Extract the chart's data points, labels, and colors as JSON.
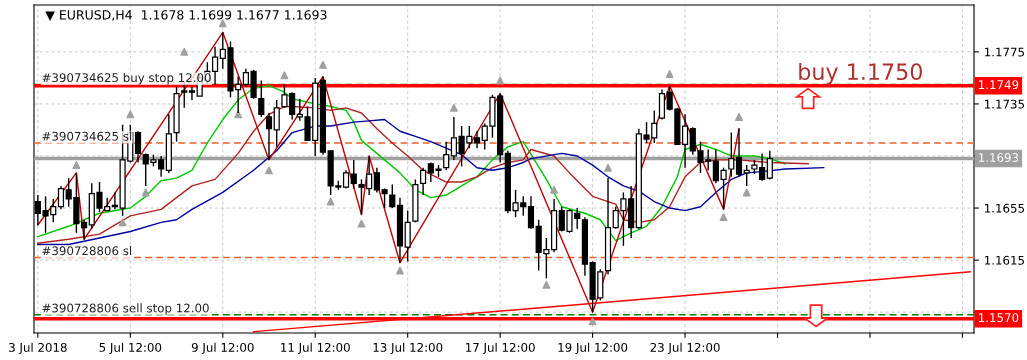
{
  "chart_data": {
    "type": "candlestick",
    "title": "▼ EURUSD,H4  1.1678 1.1699 1.1677 1.1693",
    "categories": [
      "3 Jul 2018",
      null,
      null,
      null,
      null,
      null,
      null,
      null,
      null,
      null,
      null,
      null,
      "5 Jul 12:00",
      null,
      null,
      null,
      null,
      null,
      null,
      null,
      null,
      null,
      null,
      null,
      "9 Jul 12:00",
      null,
      null,
      null,
      null,
      null,
      null,
      null,
      null,
      null,
      null,
      null,
      "11 Jul 12:00",
      null,
      null,
      null,
      null,
      null,
      null,
      null,
      null,
      null,
      null,
      null,
      "13 Jul 12:00",
      null,
      null,
      null,
      null,
      null,
      null,
      null,
      null,
      null,
      null,
      null,
      "17 Jul 12:00",
      null,
      null,
      null,
      null,
      null,
      null,
      null,
      null,
      null,
      null,
      null,
      "19 Jul 12:00",
      null,
      null,
      null,
      null,
      null,
      null,
      null,
      null,
      null,
      null,
      null,
      "23 Jul 12:00",
      null,
      null,
      null,
      null,
      null,
      null,
      null,
      null,
      null,
      null,
      null,
      null,
      null,
      null,
      null,
      null,
      null,
      null,
      null,
      null,
      null,
      null,
      null,
      null,
      null,
      null,
      null,
      null,
      null,
      null,
      null,
      null,
      null,
      null,
      null,
      null,
      null
    ],
    "ohlc": [
      [
        1.166,
        1.1665,
        1.1642,
        1.1651
      ],
      [
        1.1653,
        1.1664,
        1.1636,
        1.1649
      ],
      [
        1.165,
        1.1662,
        1.1644,
        1.1656
      ],
      [
        1.1656,
        1.1672,
        1.1654,
        1.167
      ],
      [
        1.1669,
        1.1678,
        1.1656,
        1.1662
      ],
      [
        1.1663,
        1.1682,
        1.1636,
        1.1643
      ],
      [
        1.1644,
        1.1646,
        1.1631,
        1.164
      ],
      [
        1.1642,
        1.1674,
        1.1639,
        1.1666
      ],
      [
        1.1667,
        1.1675,
        1.1652,
        1.1655
      ],
      [
        1.1653,
        1.1663,
        1.1653,
        1.1656
      ],
      [
        1.1656,
        1.1667,
        1.1654,
        1.1657
      ],
      [
        1.1655,
        1.1719,
        1.1649,
        1.1692
      ],
      [
        1.1691,
        1.1719,
        1.169,
        1.1713
      ],
      [
        1.1713,
        1.1714,
        1.169,
        1.1697
      ],
      [
        1.1696,
        1.1697,
        1.1672,
        1.1689
      ],
      [
        1.169,
        1.1696,
        1.1687,
        1.1692
      ],
      [
        1.1692,
        1.1695,
        1.1679,
        1.1685
      ],
      [
        1.1684,
        1.1727,
        1.1682,
        1.1712
      ],
      [
        1.1713,
        1.1748,
        1.1706,
        1.1743
      ],
      [
        1.1744,
        1.1752,
        1.1732,
        1.1745
      ],
      [
        1.1745,
        1.1748,
        1.1738,
        1.1744
      ],
      [
        1.1741,
        1.1758,
        1.1741,
        1.1755
      ],
      [
        1.1753,
        1.1767,
        1.175,
        1.176
      ],
      [
        1.176,
        1.1779,
        1.175,
        1.1771
      ],
      [
        1.177,
        1.179,
        1.1762,
        1.1777
      ],
      [
        1.1778,
        1.1783,
        1.174,
        1.1745
      ],
      [
        1.1746,
        1.1756,
        1.1728,
        1.175
      ],
      [
        1.175,
        1.1762,
        1.1748,
        1.1759
      ],
      [
        1.176,
        1.1761,
        1.1739,
        1.174
      ],
      [
        1.1739,
        1.1753,
        1.1725,
        1.1727
      ],
      [
        1.1725,
        1.1728,
        1.1692,
        1.1716
      ],
      [
        1.1715,
        1.1738,
        1.1702,
        1.1732
      ],
      [
        1.1733,
        1.175,
        1.1732,
        1.1742
      ],
      [
        1.1743,
        1.1744,
        1.1723,
        1.1727
      ],
      [
        1.1725,
        1.1739,
        1.1722,
        1.1727
      ],
      [
        1.1725,
        1.1733,
        1.1707,
        1.1707
      ],
      [
        1.1707,
        1.1755,
        1.1695,
        1.1751
      ],
      [
        1.1753,
        1.1756,
        1.1696,
        1.1698
      ],
      [
        1.1699,
        1.1699,
        1.1665,
        1.1672
      ],
      [
        1.1671,
        1.1676,
        1.1669,
        1.1672
      ],
      [
        1.1671,
        1.1684,
        1.167,
        1.1682
      ],
      [
        1.1681,
        1.1692,
        1.167,
        1.1674
      ],
      [
        1.1673,
        1.1677,
        1.165,
        1.1671
      ],
      [
        1.167,
        1.1695,
        1.1665,
        1.1681
      ],
      [
        1.1682,
        1.1686,
        1.1667,
        1.1669
      ],
      [
        1.1669,
        1.167,
        1.1655,
        1.1666
      ],
      [
        1.1665,
        1.1673,
        1.1655,
        1.1656
      ],
      [
        1.1657,
        1.1663,
        1.1613,
        1.1626
      ],
      [
        1.1625,
        1.1653,
        1.1614,
        1.1644
      ],
      [
        1.1645,
        1.1677,
        1.1644,
        1.1673
      ],
      [
        1.1674,
        1.1686,
        1.1665,
        1.1684
      ],
      [
        1.1689,
        1.169,
        1.1675,
        1.1682
      ],
      [
        1.1685,
        1.1688,
        1.1679,
        1.1684
      ],
      [
        1.1686,
        1.1706,
        1.1684,
        1.1696
      ],
      [
        1.1695,
        1.1725,
        1.1692,
        1.1709
      ],
      [
        1.171,
        1.1718,
        1.1687,
        1.1697
      ],
      [
        1.1705,
        1.1718,
        1.1701,
        1.171
      ],
      [
        1.1709,
        1.1714,
        1.1701,
        1.1705
      ],
      [
        1.1707,
        1.172,
        1.17,
        1.1718
      ],
      [
        1.1718,
        1.1742,
        1.1709,
        1.174
      ],
      [
        1.1741,
        1.1743,
        1.169,
        1.1696
      ],
      [
        1.1697,
        1.1699,
        1.1651,
        1.1653
      ],
      [
        1.1653,
        1.1669,
        1.1648,
        1.1659
      ],
      [
        1.1659,
        1.1664,
        1.1649,
        1.1656
      ],
      [
        1.1656,
        1.1664,
        1.1639,
        1.164
      ],
      [
        1.1641,
        1.1646,
        1.1607,
        1.1621
      ],
      [
        1.162,
        1.1632,
        1.1601,
        1.1623
      ],
      [
        1.1623,
        1.1662,
        1.1621,
        1.1653
      ],
      [
        1.1653,
        1.1656,
        1.1637,
        1.1638
      ],
      [
        1.1637,
        1.1654,
        1.1636,
        1.1653
      ],
      [
        1.1651,
        1.1655,
        1.1639,
        1.1647
      ],
      [
        1.1646,
        1.1648,
        1.1603,
        1.1612
      ],
      [
        1.1613,
        1.1614,
        1.1575,
        1.1585
      ],
      [
        1.1586,
        1.1608,
        1.1584,
        1.1606
      ],
      [
        1.1607,
        1.1678,
        1.1604,
        1.164
      ],
      [
        1.164,
        1.1656,
        1.1639,
        1.1653
      ],
      [
        1.1653,
        1.1667,
        1.1626,
        1.1662
      ],
      [
        1.1662,
        1.1672,
        1.1632,
        1.164
      ],
      [
        1.164,
        1.1716,
        1.1639,
        1.1712
      ],
      [
        1.1711,
        1.1721,
        1.1705,
        1.1708
      ],
      [
        1.1709,
        1.173,
        1.1705,
        1.172
      ],
      [
        1.1724,
        1.1746,
        1.1723,
        1.1743
      ],
      [
        1.1744,
        1.1749,
        1.173,
        1.1731
      ],
      [
        1.1731,
        1.1732,
        1.1704,
        1.1704
      ],
      [
        1.1704,
        1.1727,
        1.1686,
        1.1718
      ],
      [
        1.1716,
        1.1717,
        1.1696,
        1.1699
      ],
      [
        1.1699,
        1.1706,
        1.1682,
        1.169
      ],
      [
        1.1691,
        1.17,
        1.1684,
        1.1692
      ],
      [
        1.1691,
        1.17,
        1.1674,
        1.1676
      ],
      [
        1.1677,
        1.1686,
        1.1654,
        1.1684
      ],
      [
        1.1685,
        1.1713,
        1.1679,
        1.1693
      ],
      [
        1.1694,
        1.1716,
        1.1679,
        1.1681
      ],
      [
        1.1682,
        1.1688,
        1.1672,
        1.1684
      ],
      [
        1.1685,
        1.1692,
        1.1681,
        1.1688
      ],
      [
        1.1686,
        1.1697,
        1.1676,
        1.1677
      ],
      [
        1.1678,
        1.1699,
        1.1677,
        1.1693
      ],
      null,
      null,
      null,
      null,
      null,
      null,
      null,
      null,
      null,
      null,
      null,
      null,
      null,
      null,
      null,
      null,
      null,
      null,
      null,
      null,
      null,
      null,
      null,
      null,
      null,
      null
    ],
    "series": [
      {
        "type": "line",
        "color": "#00c800",
        "values": [
          1.1633,
          null,
          null,
          null,
          1.1641,
          null,
          null,
          null,
          1.1651,
          null,
          null,
          null,
          1.1655,
          null,
          1.1664,
          null,
          1.1676,
          null,
          1.1678,
          null,
          1.1684,
          null,
          1.1705,
          null,
          1.1723,
          null,
          1.1738,
          null,
          1.1747,
          null,
          1.1749,
          null,
          1.1744,
          1.1739,
          null,
          null,
          1.1735,
          null,
          1.1733,
          null,
          1.173,
          1.1721,
          1.1707,
          1.1702,
          null,
          1.1692,
          null,
          1.1682,
          null,
          1.1669,
          null,
          1.1663,
          null,
          1.1665,
          null,
          1.1672,
          null,
          1.1679,
          null,
          1.1692,
          null,
          1.1702,
          null,
          1.1706,
          null,
          null,
          1.1677,
          null,
          1.1656,
          null,
          null,
          1.1651,
          null,
          1.1646,
          null,
          1.163,
          null,
          1.1636,
          null,
          1.1641,
          null,
          1.1656,
          null,
          1.1679,
          1.17,
          null,
          1.1704,
          null,
          1.17,
          null,
          1.1695,
          null,
          null,
          1.1695,
          null,
          1.1693,
          null,
          1.1689,
          null,
          null,
          null,
          null,
          null,
          null,
          null,
          null,
          null,
          null,
          null,
          null,
          null,
          null,
          null,
          null,
          null,
          null,
          null,
          null,
          null,
          null,
          null,
          null
        ]
      },
      {
        "type": "line",
        "color": "#b22222",
        "values": [
          1.1628,
          null,
          null,
          null,
          1.1631,
          null,
          null,
          null,
          1.1635,
          null,
          null,
          null,
          1.1649,
          null,
          null,
          null,
          1.1654,
          null,
          null,
          null,
          1.1672,
          null,
          null,
          1.1677,
          null,
          null,
          1.1697,
          null,
          1.1714,
          null,
          1.1727,
          null,
          1.1733,
          1.1733,
          null,
          null,
          1.1732,
          null,
          1.173,
          null,
          1.1732,
          null,
          1.1728,
          null,
          1.1716,
          null,
          1.1705,
          null,
          1.1695,
          null,
          1.1684,
          null,
          null,
          1.1675,
          null,
          1.1675,
          null,
          1.1679,
          null,
          1.1686,
          null,
          1.169,
          null,
          1.1692,
          1.17,
          null,
          null,
          1.1695,
          null,
          1.1682,
          null,
          null,
          1.1664,
          null,
          1.166,
          1.1658,
          1.1646,
          null,
          1.1644,
          null,
          1.1646,
          null,
          1.1656,
          null,
          1.1679,
          null,
          1.169,
          null,
          1.1692,
          null,
          null,
          1.1692,
          null,
          1.1691,
          null,
          1.169,
          null,
          null,
          null,
          null,
          1.1689,
          null,
          null,
          null,
          null,
          null,
          null,
          null,
          null,
          null,
          null,
          null,
          null,
          null,
          null,
          null,
          null,
          null,
          null,
          null,
          null,
          null
        ]
      },
      {
        "type": "line",
        "color": "#0000a0",
        "values": [
          1.1627,
          null,
          null,
          null,
          1.1627,
          null,
          null,
          null,
          1.1632,
          null,
          null,
          null,
          1.1637,
          null,
          null,
          null,
          1.1644,
          null,
          1.1646,
          null,
          1.1654,
          null,
          null,
          null,
          1.1667,
          null,
          null,
          null,
          1.1684,
          null,
          null,
          1.1699,
          null,
          1.1713,
          null,
          null,
          1.1718,
          null,
          1.1718,
          null,
          null,
          1.1721,
          null,
          1.1722,
          null,
          1.1723,
          null,
          1.1714,
          null,
          1.171,
          null,
          1.1706,
          null,
          1.1701,
          null,
          1.1696,
          null,
          1.1686,
          null,
          1.1684,
          null,
          1.1686,
          null,
          1.169,
          1.1693,
          null,
          null,
          null,
          1.1697,
          null,
          1.1695,
          null,
          1.1688,
          null,
          1.1679,
          null,
          1.1672,
          null,
          1.1668,
          null,
          1.166,
          null,
          1.1655,
          null,
          1.1653,
          null,
          1.1656,
          null,
          1.1667,
          null,
          1.1677,
          null,
          1.1682,
          null,
          1.1683,
          null,
          null,
          1.1685,
          null,
          null,
          null,
          null,
          1.1686,
          null,
          null,
          null,
          null,
          null,
          null,
          null,
          null,
          null,
          null,
          null,
          null,
          null,
          null,
          null,
          null,
          null,
          null,
          null
        ]
      },
      {
        "type": "line",
        "color": "#c00000",
        "values": [
          1.1642,
          null,
          null,
          null,
          null,
          1.1682,
          1.1631,
          null,
          null,
          null,
          null,
          null,
          null,
          null,
          null,
          null,
          null,
          null,
          null,
          null,
          null,
          null,
          null,
          null,
          1.179,
          null,
          null,
          null,
          null,
          null,
          1.1692,
          null,
          null,
          null,
          null,
          null,
          null,
          1.1756,
          null,
          null,
          null,
          null,
          1.165,
          1.1695,
          null,
          null,
          null,
          1.1613,
          null,
          null,
          null,
          null,
          null,
          null,
          null,
          null,
          null,
          null,
          null,
          null,
          1.1743,
          null,
          null,
          null,
          null,
          null,
          null,
          null,
          null,
          null,
          null,
          null,
          1.1575,
          null,
          null,
          null,
          null,
          null,
          null,
          null,
          null,
          null,
          1.1749,
          null,
          null,
          null,
          null,
          null,
          null,
          1.1654,
          null,
          1.1716,
          null,
          null,
          null,
          null,
          null,
          null,
          null,
          null,
          null,
          null,
          null,
          null,
          null,
          null,
          null,
          null,
          null,
          null,
          null,
          null,
          null,
          null,
          null,
          null,
          null,
          null,
          null,
          null,
          null,
          null
        ]
      },
      {
        "type": "line",
        "color": "#ff0000",
        "values": [
          null,
          null,
          null,
          null,
          null,
          null,
          null,
          null,
          null,
          null,
          null,
          null,
          null,
          null,
          null,
          null,
          null,
          null,
          null,
          null,
          null,
          null,
          null,
          null,
          null,
          null,
          null,
          null,
          1.156,
          null,
          null,
          null,
          null,
          null,
          null,
          null,
          null,
          null,
          null,
          null,
          null,
          null,
          null,
          null,
          null,
          null,
          null,
          null,
          null,
          null,
          null,
          null,
          null,
          null,
          null,
          null,
          null,
          null,
          null,
          null,
          null,
          null,
          null,
          null,
          null,
          null,
          null,
          null,
          null,
          null,
          null,
          null,
          null,
          null,
          null,
          null,
          null,
          null,
          null,
          null,
          null,
          null,
          null,
          null,
          null,
          null,
          null,
          null,
          null,
          null,
          null,
          null,
          null,
          null,
          null,
          null,
          null,
          null,
          null,
          null,
          null,
          null,
          null,
          null,
          null,
          null,
          null,
          null,
          null,
          null,
          null,
          null,
          null,
          null,
          null,
          null,
          null,
          null,
          null,
          null,
          null,
          1.1606
        ]
      },
      {
        "type": "scatter",
        "color": "#a0a0a0",
        "marker": "triangle",
        "values": [
          null,
          null,
          null,
          null,
          null,
          1.1688,
          null,
          null,
          null,
          null,
          null,
          null,
          1.1727,
          null,
          null,
          null,
          null,
          null,
          null,
          1.1775,
          null,
          null,
          null,
          null,
          1.1797,
          null,
          null,
          null,
          null,
          null,
          null,
          null,
          1.1757,
          null,
          null,
          null,
          null,
          1.1765,
          null,
          null,
          null,
          null,
          null,
          null,
          null,
          null,
          null,
          null,
          null,
          null,
          null,
          null,
          null,
          null,
          1.1732,
          null,
          null,
          null,
          null,
          null,
          1.1753,
          null,
          null,
          null,
          null,
          null,
          null,
          1.1669,
          null,
          null,
          null,
          null,
          null,
          null,
          1.1686,
          null,
          null,
          null,
          null,
          null,
          null,
          null,
          1.1758,
          null,
          null,
          null,
          null,
          null,
          null,
          null,
          null,
          1.1725,
          null,
          null,
          null,
          null,
          null,
          null,
          null,
          null,
          null,
          null,
          null,
          null,
          null,
          null,
          null,
          null,
          null,
          null,
          null,
          null,
          null,
          null,
          null,
          null,
          null,
          null,
          null,
          null,
          null,
          null
        ]
      },
      {
        "type": "scatter",
        "color": "#a0a0a0",
        "marker": "triangle",
        "values": [
          null,
          null,
          null,
          null,
          null,
          null,
          null,
          null,
          null,
          null,
          null,
          1.1644,
          null,
          null,
          1.1667,
          null,
          null,
          null,
          null,
          null,
          null,
          null,
          null,
          null,
          null,
          null,
          1.1727,
          null,
          null,
          null,
          1.1684,
          null,
          null,
          null,
          null,
          null,
          null,
          null,
          1.166,
          null,
          null,
          null,
          1.1643,
          null,
          null,
          null,
          null,
          1.1607,
          null,
          null,
          null,
          null,
          null,
          null,
          null,
          null,
          null,
          null,
          null,
          null,
          null,
          null,
          null,
          null,
          null,
          null,
          1.1596,
          null,
          null,
          null,
          null,
          null,
          1.1568,
          null,
          null,
          null,
          null,
          null,
          null,
          null,
          null,
          null,
          null,
          null,
          null,
          null,
          null,
          null,
          null,
          1.1648,
          null,
          null,
          1.1667,
          null,
          null,
          null,
          null,
          null,
          null,
          null,
          null,
          null,
          null,
          null,
          null,
          null,
          null,
          null,
          null,
          null,
          null,
          null,
          null,
          null,
          null,
          null,
          null,
          null,
          null,
          null,
          null,
          null
        ]
      }
    ],
    "ylim": [
      1.1559,
      1.1811
    ],
    "yticks": [
      1.1775,
      1.1735,
      {
        "value": 1.1695,
        "label": null
      },
      1.1655,
      1.1615,
      {
        "value": 1.1575,
        "label": null
      }
    ],
    "grid": true,
    "ref_lines": [
      {
        "axis": "y",
        "value": 1.175,
        "label": "#390734625 buy stop 12.00",
        "color": "#008000",
        "line_style": "dashed"
      },
      {
        "axis": "y",
        "value": 1.1573,
        "label": "#390728806 sell stop 12.00",
        "color": "#008000",
        "line_style": "dashed"
      },
      {
        "axis": "y",
        "value": 1.1705,
        "label": "#390734625 sl",
        "color": "#e8622c",
        "line_style": "dashed"
      },
      {
        "axis": "y",
        "value": 1.1617,
        "label": "#390728806 sl",
        "color": "#e8622c",
        "line_style": "dashed"
      },
      {
        "axis": "y",
        "value": 1.1693,
        "label": "1.1693",
        "color": "#a0a0a0",
        "line_style": "solid"
      },
      {
        "axis": "y",
        "value": 1.1749,
        "label": "1.1749",
        "color": "#ff0000",
        "line_style": "solid"
      },
      {
        "axis": "y",
        "value": 1.157,
        "label": "1.1570",
        "color": "#ff0000",
        "line_style": "solid"
      }
    ],
    "annotations": [
      {
        "text": "buy 1.1750",
        "y": 1.175
      }
    ]
  }
}
